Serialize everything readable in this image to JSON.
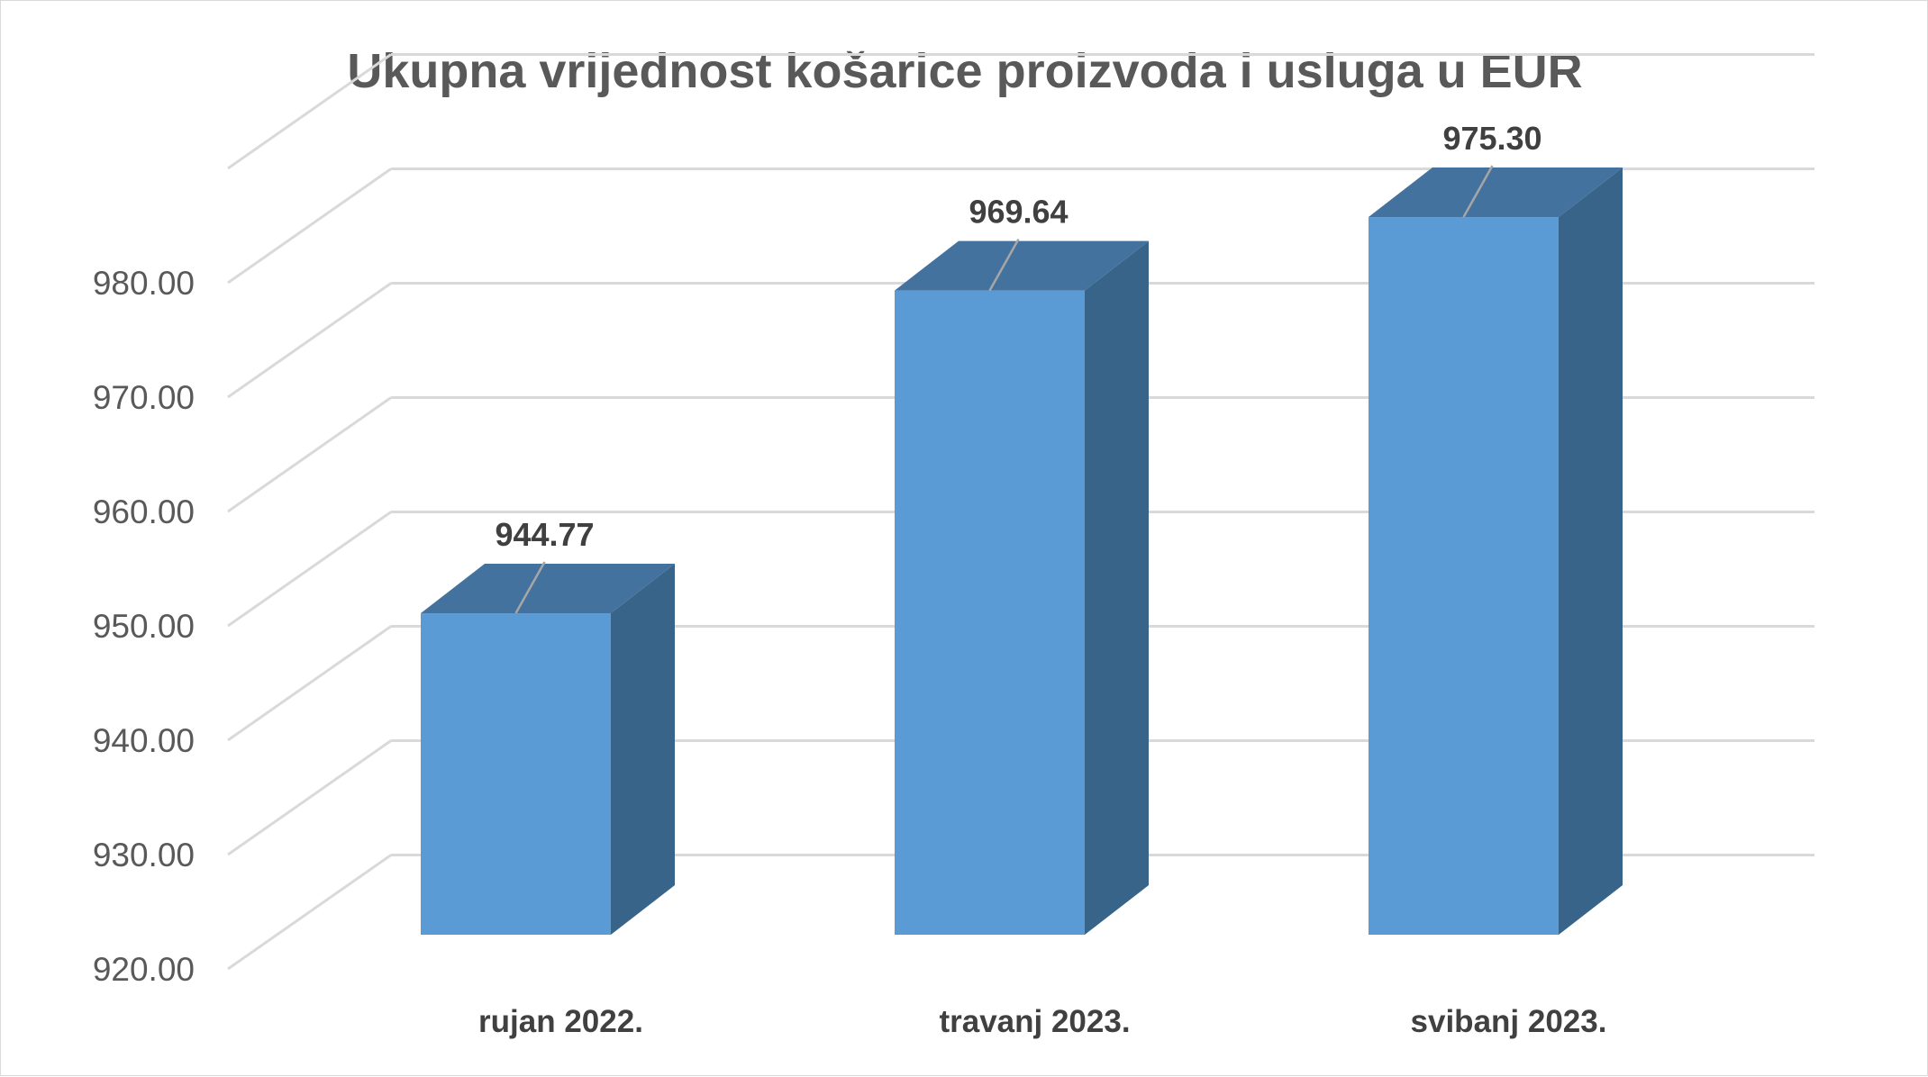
{
  "chart_data": {
    "type": "bar",
    "title": "Ukupna vrijednost košarice proizvoda i usluga u EUR",
    "categories": [
      "rujan 2022.",
      "travanj 2023.",
      "svibanj 2023."
    ],
    "values": [
      944.77,
      969.64,
      975.3
    ],
    "value_labels": [
      "944.77",
      "969.64",
      "975.30"
    ],
    "y_ticks": [
      "920.00",
      "930.00",
      "940.00",
      "950.00",
      "960.00",
      "970.00",
      "980.00"
    ],
    "ylim": [
      920,
      980
    ],
    "grid": true,
    "style": "3d-column",
    "legend": "none",
    "colors": {
      "bar_front": "#5b9bd5",
      "bar_top": "#44729e",
      "bar_side": "#386489",
      "grid": "#d9d9d9",
      "text": "#595959"
    }
  }
}
